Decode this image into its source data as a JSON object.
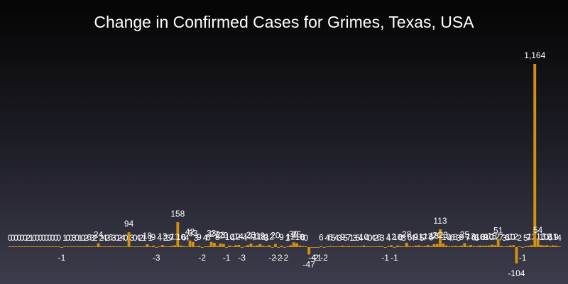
{
  "chart_data": {
    "type": "bar",
    "title": "Change in Confirmed Cases for Grimes, Texas, USA",
    "xlabel": "",
    "ylabel": "",
    "ylim": [
      -104,
      1164
    ],
    "grid": false,
    "legend": "none",
    "colors": {
      "bar": "#d4900f",
      "text": "#ffffff"
    },
    "values": [
      0,
      0,
      0,
      0,
      0,
      0,
      2,
      1,
      0,
      0,
      0,
      0,
      0,
      0,
      0,
      0,
      0,
      -1,
      1,
      0,
      0,
      3,
      0,
      1,
      0,
      2,
      6,
      3,
      2,
      24,
      2,
      4,
      2,
      6,
      3,
      0,
      2,
      4,
      0,
      94,
      3,
      0,
      4,
      2,
      1,
      18,
      1,
      9,
      -3,
      4,
      13,
      2,
      3,
      7,
      11,
      158,
      10,
      6,
      4,
      42,
      33,
      3,
      9,
      -2,
      4,
      6,
      33,
      27,
      8,
      23,
      20,
      -1,
      10,
      4,
      12,
      14,
      -3,
      4,
      13,
      23,
      7,
      11,
      19,
      8,
      3,
      12,
      -2,
      20,
      -2,
      9,
      -2,
      1,
      12,
      30,
      25,
      10,
      6,
      0,
      -47,
      -4,
      -2,
      -1,
      6,
      -2,
      4,
      6,
      5,
      4,
      3,
      9,
      5,
      7,
      1,
      3,
      5,
      4,
      10,
      4,
      0,
      4,
      2,
      6,
      3,
      -1,
      4,
      12,
      -1,
      10,
      6,
      3,
      28,
      6,
      4,
      9,
      11,
      5,
      7,
      13,
      6,
      18,
      20,
      113,
      23,
      10,
      4,
      6,
      8,
      3,
      9,
      25,
      7,
      13,
      6,
      5,
      10,
      8,
      9,
      10,
      15,
      12,
      51,
      7,
      3,
      6,
      10,
      12,
      -104,
      2,
      -1,
      5,
      7,
      12,
      1164,
      54,
      13,
      10,
      12,
      6,
      11,
      9,
      4
    ]
  }
}
